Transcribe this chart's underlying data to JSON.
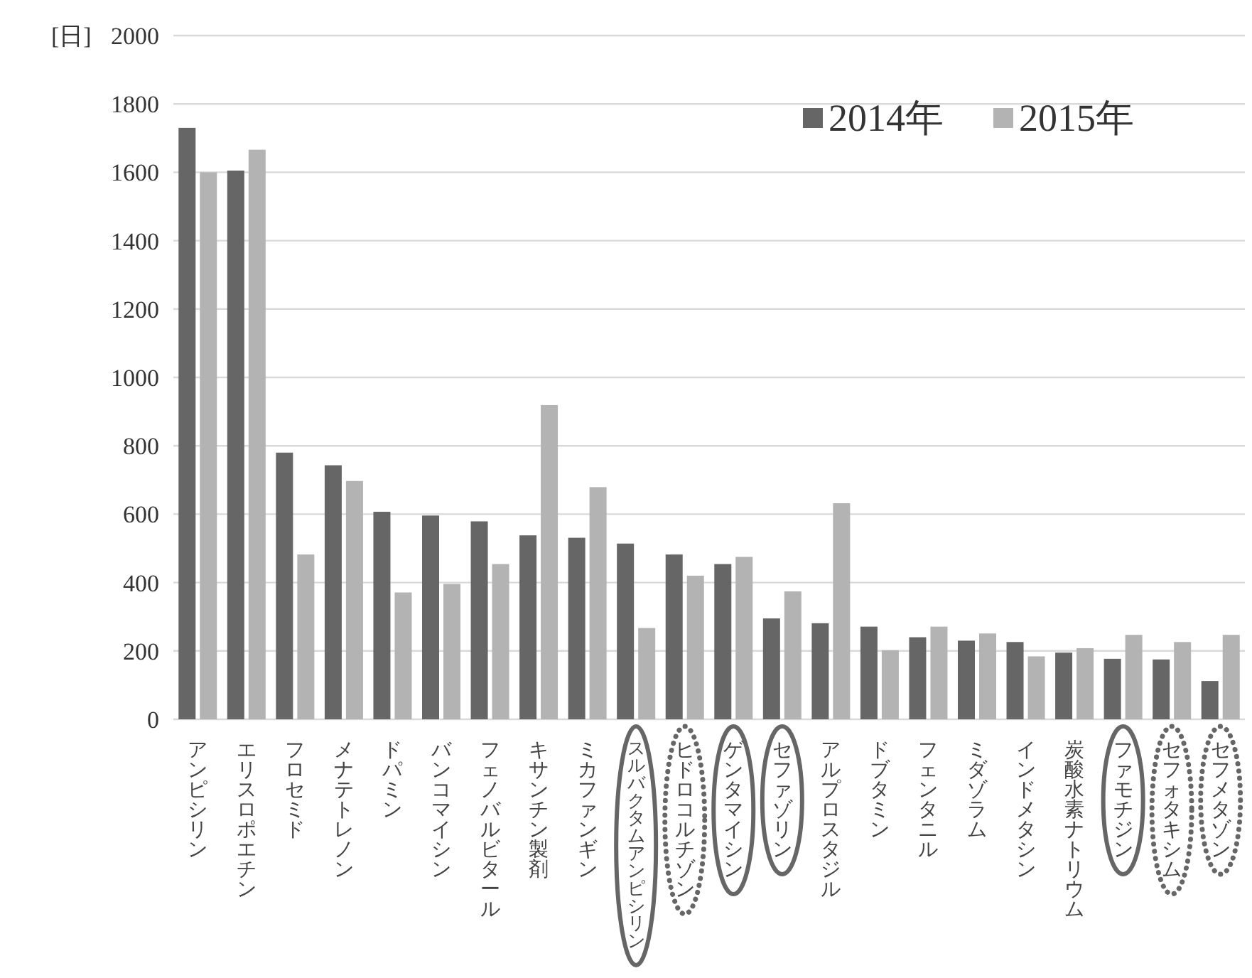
{
  "chart_data": {
    "type": "bar",
    "ylabel": "[日]",
    "categories": [
      "アンピシリン",
      "エリスロポエチン",
      "フロセミド",
      "メナテトレノン",
      "ドパミン",
      "バンコマイシン",
      "フェノバルビタール",
      "キサンチン製剤",
      "ミカファンギン",
      "スルバクタムアンピシリン",
      "ヒドロコルチゾン",
      "ゲンタマイシン",
      "セファゾリン",
      "アルプロスタジル",
      "ドブタミン",
      "フェンタニル",
      "ミダゾラム",
      "インドメタシン",
      "炭酸水素ナトリウム",
      "ファモチジン",
      "セフォタキシム",
      "セフメタゾン"
    ],
    "series": [
      {
        "name": "2014年",
        "color": "#666666",
        "values": [
          1730,
          1605,
          780,
          743,
          607,
          596,
          579,
          538,
          531,
          514,
          482,
          454,
          295,
          281,
          271,
          240,
          230,
          226,
          195,
          177,
          175,
          112
        ]
      },
      {
        "name": "2015年",
        "color": "#b3b3b3",
        "values": [
          1600,
          1666,
          482,
          697,
          371,
          396,
          454,
          919,
          679,
          267,
          420,
          475,
          374,
          632,
          202,
          271,
          251,
          184,
          208,
          247,
          226,
          247
        ]
      }
    ],
    "ylim": [
      0,
      2000
    ],
    "yticks": [
      0,
      200,
      400,
      600,
      800,
      1000,
      1200,
      1400,
      1600,
      1800,
      2000
    ],
    "grid": "y",
    "legend": "top right"
  }
}
